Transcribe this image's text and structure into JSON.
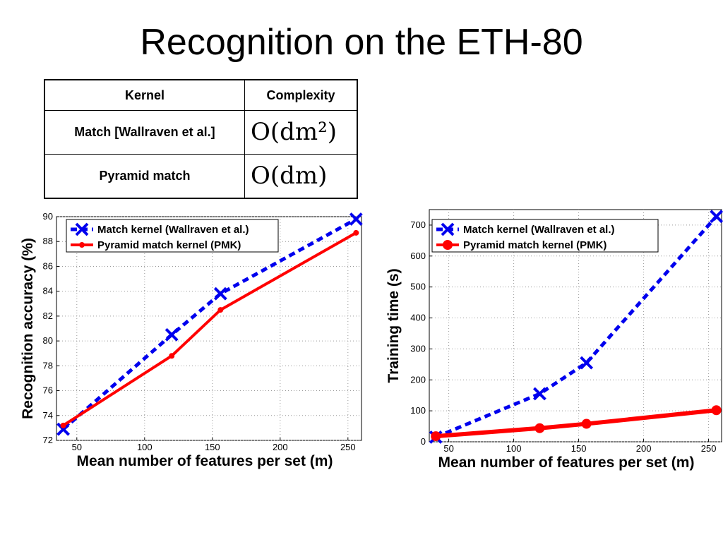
{
  "slide": {
    "title": "Recognition on the ETH-80"
  },
  "table": {
    "headers": [
      "Kernel",
      "Complexity"
    ],
    "rows": [
      {
        "kernel": "Match [Wallraven et al.]",
        "complexity": "O(dm²)"
      },
      {
        "kernel": "Pyramid match",
        "complexity": "O(dm)"
      }
    ]
  },
  "chart_data": [
    {
      "type": "line",
      "xlabel": "Mean number of features per set (m)",
      "ylabel": "Recognition accuracy (%)",
      "xlim": [
        35,
        260
      ],
      "ylim": [
        72,
        90
      ],
      "xticks": [
        50,
        100,
        150,
        200,
        250
      ],
      "yticks": [
        72,
        74,
        76,
        78,
        80,
        82,
        84,
        86,
        88,
        90
      ],
      "grid": true,
      "legend_position": "top-left",
      "series": [
        {
          "name": "Match kernel (Wallraven et al.)",
          "color": "#0000ee",
          "style": "dashed",
          "marker": "x",
          "x": [
            40,
            120,
            156,
            256
          ],
          "y": [
            72.9,
            80.5,
            83.8,
            89.8
          ]
        },
        {
          "name": "Pyramid match kernel (PMK)",
          "color": "#ff0000",
          "style": "solid",
          "marker": "dot",
          "x": [
            40,
            120,
            156,
            256
          ],
          "y": [
            73.2,
            78.8,
            82.5,
            88.7
          ]
        }
      ]
    },
    {
      "type": "line",
      "xlabel": "Mean number of features per set (m)",
      "ylabel": "Training time (s)",
      "xlim": [
        35,
        260
      ],
      "ylim": [
        0,
        750
      ],
      "xticks": [
        50,
        100,
        150,
        200,
        250
      ],
      "yticks": [
        0,
        100,
        200,
        300,
        400,
        500,
        600,
        700
      ],
      "grid": true,
      "legend_position": "top-left",
      "series": [
        {
          "name": "Match kernel (Wallraven et al.)",
          "color": "#0000ee",
          "style": "dashed",
          "marker": "x",
          "x": [
            40,
            120,
            156,
            256
          ],
          "y": [
            15,
            155,
            255,
            728
          ]
        },
        {
          "name": "Pyramid match kernel (PMK)",
          "color": "#ff0000",
          "style": "solid",
          "marker": "dot",
          "x": [
            40,
            120,
            156,
            256
          ],
          "y": [
            18,
            44,
            58,
            102
          ]
        }
      ]
    }
  ]
}
